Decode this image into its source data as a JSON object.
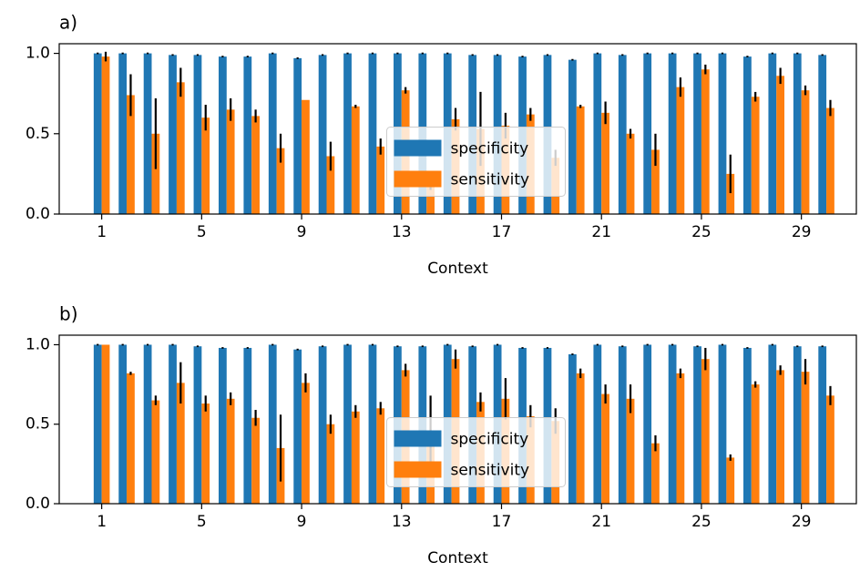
{
  "chart_data": [
    {
      "type": "bar",
      "title": "a)",
      "x_label": "Context",
      "legend_loc": "center",
      "x": [
        1,
        2,
        3,
        4,
        5,
        6,
        7,
        8,
        9,
        10,
        11,
        12,
        13,
        14,
        15,
        16,
        17,
        18,
        19,
        20,
        21,
        22,
        23,
        24,
        25,
        26,
        27,
        28,
        29,
        30
      ],
      "xlim": [
        -0.7,
        31.2
      ],
      "xticks": [
        1,
        5,
        9,
        13,
        17,
        21,
        25,
        29
      ],
      "ylim": [
        0,
        1.06
      ],
      "yticks": [
        {
          "value": 0,
          "label": "0.0"
        },
        {
          "value": 0.5,
          "label": "0.5"
        },
        {
          "value": 1,
          "label": "1.0"
        }
      ],
      "series": [
        {
          "name": "specificity",
          "color": "#1f77b4",
          "values": [
            1.0,
            1.0,
            1.0,
            0.99,
            0.99,
            0.98,
            0.98,
            1.0,
            0.97,
            0.99,
            1.0,
            1.0,
            1.0,
            1.0,
            1.0,
            0.99,
            0.99,
            0.98,
            0.99,
            0.96,
            1.0,
            0.99,
            1.0,
            1.0,
            1.0,
            1.0,
            0.98,
            1.0,
            1.0,
            0.99
          ],
          "errors": [
            0.005,
            0.005,
            0.005,
            0.005,
            0.005,
            0.005,
            0.005,
            0.005,
            0.005,
            0.005,
            0.005,
            0.005,
            0.005,
            0.005,
            0.005,
            0.005,
            0.005,
            0.005,
            0.005,
            0.005,
            0.005,
            0.005,
            0.005,
            0.005,
            0.005,
            0.005,
            0.005,
            0.005,
            0.005,
            0.005
          ]
        },
        {
          "name": "sensitivity",
          "color": "#ff7f0e",
          "values": [
            0.98,
            0.74,
            0.5,
            0.82,
            0.6,
            0.65,
            0.61,
            0.41,
            0.71,
            0.36,
            0.67,
            0.42,
            0.77,
            0.17,
            0.59,
            0.53,
            0.55,
            0.62,
            0.35,
            0.67,
            0.63,
            0.5,
            0.4,
            0.79,
            0.9,
            0.25,
            0.73,
            0.86,
            0.77,
            0.66
          ],
          "errors": [
            0.03,
            0.13,
            0.22,
            0.09,
            0.08,
            0.07,
            0.04,
            0.09,
            0.0,
            0.09,
            0.01,
            0.05,
            0.02,
            0.02,
            0.07,
            0.23,
            0.08,
            0.04,
            0.05,
            0.01,
            0.07,
            0.03,
            0.1,
            0.06,
            0.03,
            0.12,
            0.03,
            0.05,
            0.03,
            0.05
          ]
        }
      ]
    },
    {
      "type": "bar",
      "title": "b)",
      "x_label": "Context",
      "legend_loc": "center",
      "x": [
        1,
        2,
        3,
        4,
        5,
        6,
        7,
        8,
        9,
        10,
        11,
        12,
        13,
        14,
        15,
        16,
        17,
        18,
        19,
        20,
        21,
        22,
        23,
        24,
        25,
        26,
        27,
        28,
        29,
        30
      ],
      "xlim": [
        -0.7,
        31.2
      ],
      "xticks": [
        1,
        5,
        9,
        13,
        17,
        21,
        25,
        29
      ],
      "ylim": [
        0,
        1.06
      ],
      "yticks": [
        {
          "value": 0,
          "label": "0.0"
        },
        {
          "value": 0.5,
          "label": "0.5"
        },
        {
          "value": 1,
          "label": "1.0"
        }
      ],
      "series": [
        {
          "name": "specificity",
          "color": "#1f77b4",
          "values": [
            1.0,
            1.0,
            1.0,
            1.0,
            0.99,
            0.98,
            0.98,
            1.0,
            0.97,
            0.99,
            1.0,
            1.0,
            0.99,
            0.99,
            1.0,
            0.99,
            1.0,
            0.98,
            0.98,
            0.94,
            1.0,
            0.99,
            1.0,
            1.0,
            0.99,
            1.0,
            0.98,
            1.0,
            0.99,
            0.99
          ],
          "errors": [
            0.005,
            0.005,
            0.005,
            0.005,
            0.005,
            0.005,
            0.005,
            0.005,
            0.005,
            0.005,
            0.005,
            0.005,
            0.005,
            0.005,
            0.005,
            0.005,
            0.005,
            0.005,
            0.005,
            0.005,
            0.005,
            0.005,
            0.005,
            0.005,
            0.005,
            0.005,
            0.005,
            0.005,
            0.005,
            0.005
          ]
        },
        {
          "name": "sensitivity",
          "color": "#ff7f0e",
          "values": [
            1.0,
            0.82,
            0.65,
            0.76,
            0.63,
            0.66,
            0.54,
            0.35,
            0.76,
            0.5,
            0.58,
            0.6,
            0.84,
            0.45,
            0.91,
            0.64,
            0.66,
            0.55,
            0.52,
            0.82,
            0.69,
            0.66,
            0.38,
            0.82,
            0.91,
            0.29,
            0.75,
            0.84,
            0.83,
            0.68
          ],
          "errors": [
            0.0,
            0.01,
            0.03,
            0.13,
            0.05,
            0.04,
            0.05,
            0.21,
            0.06,
            0.06,
            0.04,
            0.04,
            0.04,
            0.23,
            0.06,
            0.06,
            0.13,
            0.07,
            0.08,
            0.03,
            0.06,
            0.09,
            0.05,
            0.03,
            0.07,
            0.02,
            0.02,
            0.03,
            0.08,
            0.06
          ]
        }
      ]
    }
  ]
}
